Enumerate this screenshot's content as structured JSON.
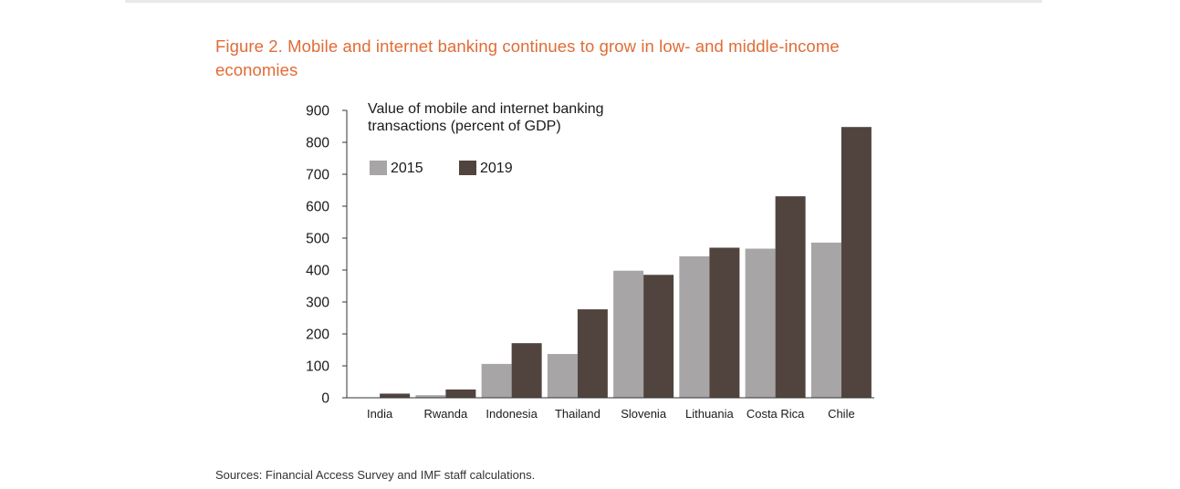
{
  "figure": {
    "title": "Figure 2. Mobile and internet banking continues to grow in low- and middle-income economies",
    "source": "Sources: Financial Access Survey and IMF staff calculations."
  },
  "chart_data": {
    "type": "bar",
    "title": "Figure 2. Mobile and internet banking continues to grow in low- and middle-income economies",
    "ylabel_lines": [
      "Value of mobile and internet banking",
      "transactions (percent of GDP)"
    ],
    "xlabel": "",
    "categories": [
      "India",
      "Rwanda",
      "Indonesia",
      "Thailand",
      "Slovenia",
      "Lithuania",
      "Costa Rica",
      "Chile"
    ],
    "series": [
      {
        "name": "2015",
        "color": "#a7a5a5",
        "values": [
          1,
          8,
          106,
          137,
          398,
          443,
          467,
          486
        ]
      },
      {
        "name": "2019",
        "color": "#51443f",
        "values": [
          13,
          26,
          171,
          277,
          385,
          470,
          631,
          848
        ]
      }
    ],
    "ylim": [
      0,
      900
    ],
    "yticks": [
      0,
      100,
      200,
      300,
      400,
      500,
      600,
      700,
      800,
      900
    ],
    "legend_position": "top-left",
    "grid": false
  }
}
